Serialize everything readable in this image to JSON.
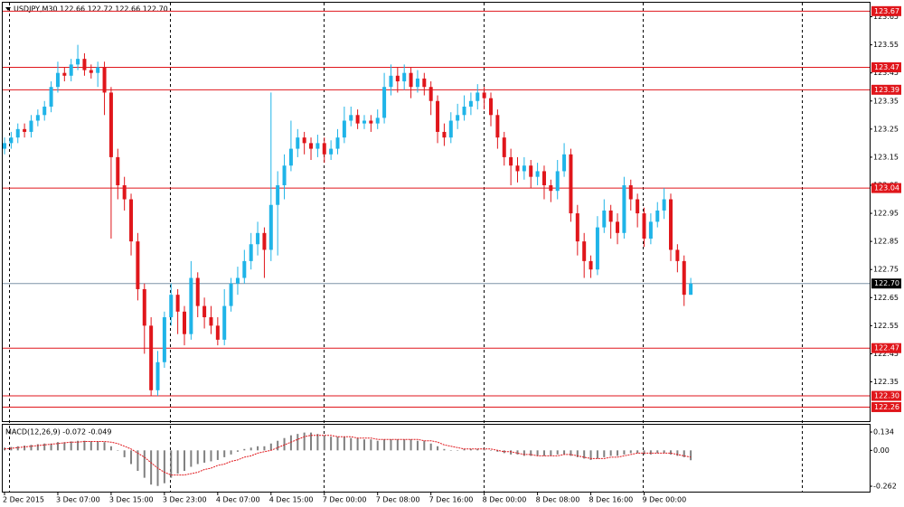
{
  "chart_data": {
    "type": "candlestick",
    "title": "USDJPY,M30  122.66 122.72 122.66 122.70",
    "bull_color": "#1fb4e8",
    "bear_color": "#e0161b",
    "categories": [
      "2 Dec 2015",
      null,
      null,
      null,
      null,
      null,
      null,
      null,
      "3 Dec 07:00",
      null,
      null,
      null,
      null,
      null,
      null,
      null,
      "3 Dec 15:00",
      null,
      null,
      null,
      null,
      null,
      null,
      null,
      "3 Dec 23:00",
      null,
      null,
      null,
      null,
      null,
      null,
      null,
      "4 Dec 07:00",
      null,
      null,
      null,
      null,
      null,
      null,
      null,
      "4 Dec 15:00",
      null,
      null,
      null,
      null,
      null,
      null,
      null,
      "7 Dec 00:00",
      null,
      null,
      null,
      null,
      null,
      null,
      null,
      "7 Dec 08:00",
      null,
      null,
      null,
      null,
      null,
      null,
      null,
      "7 Dec 16:00",
      null,
      null,
      null,
      null,
      null,
      null,
      null,
      "8 Dec 00:00",
      null,
      null,
      null,
      null,
      null,
      null,
      null,
      "8 Dec 08:00",
      null,
      null,
      null,
      null,
      null,
      null,
      null,
      "8 Dec 16:00",
      null,
      null,
      null,
      null,
      null,
      null,
      null,
      "9 Dec 00:00",
      null,
      null,
      null,
      null,
      null,
      null,
      null
    ],
    "open": [
      123.18,
      123.2,
      123.22,
      123.25,
      123.24,
      123.28,
      123.3,
      123.33,
      123.4,
      123.45,
      123.44,
      123.48,
      123.5,
      123.46,
      123.45,
      123.47,
      123.38,
      123.15,
      123.05,
      123.0,
      122.85,
      122.68,
      122.55,
      122.32,
      122.42,
      122.58,
      122.66,
      122.6,
      122.52,
      122.72,
      122.62,
      122.58,
      122.55,
      122.5,
      122.62,
      122.7,
      122.72,
      122.78,
      122.84,
      122.88,
      122.82,
      122.98,
      123.05,
      123.12,
      123.18,
      123.22,
      123.2,
      123.18,
      123.2,
      123.16,
      123.18,
      123.22,
      123.28,
      123.3,
      123.27,
      123.28,
      123.27,
      123.29,
      123.4,
      123.44,
      123.42,
      123.45,
      123.4,
      123.43,
      123.4,
      123.35,
      123.24,
      123.22,
      123.28,
      123.3,
      123.33,
      123.35,
      123.38,
      123.36,
      123.3,
      123.22,
      123.15,
      123.12,
      123.1,
      123.12,
      123.08,
      123.1,
      123.05,
      123.03,
      123.1,
      123.16,
      122.95,
      122.85,
      122.78,
      122.75,
      122.9,
      122.96,
      122.92,
      122.88,
      123.05,
      123.0,
      122.95,
      122.86,
      122.92,
      122.96,
      123.0,
      122.82,
      122.78,
      122.66
    ],
    "high": [
      123.22,
      123.24,
      123.27,
      123.27,
      123.3,
      123.32,
      123.35,
      123.42,
      123.49,
      123.47,
      123.5,
      123.55,
      123.52,
      123.48,
      123.49,
      123.49,
      123.4,
      123.18,
      123.08,
      123.02,
      122.88,
      122.7,
      122.58,
      122.46,
      122.6,
      122.7,
      122.68,
      122.62,
      122.78,
      122.74,
      122.65,
      122.62,
      122.58,
      122.68,
      122.72,
      122.76,
      122.82,
      122.88,
      122.92,
      122.9,
      123.38,
      123.1,
      123.16,
      123.28,
      123.25,
      123.24,
      123.22,
      123.23,
      123.22,
      123.21,
      123.25,
      123.33,
      123.33,
      123.32,
      123.3,
      123.3,
      123.32,
      123.45,
      123.48,
      123.47,
      123.48,
      123.47,
      123.46,
      123.45,
      123.42,
      123.37,
      123.27,
      123.31,
      123.34,
      123.37,
      123.38,
      123.41,
      123.4,
      123.38,
      123.32,
      123.24,
      123.18,
      123.15,
      123.15,
      123.14,
      123.13,
      123.12,
      123.07,
      123.14,
      123.2,
      123.18,
      122.98,
      122.88,
      122.8,
      122.94,
      123.0,
      122.98,
      122.95,
      123.08,
      123.07,
      123.02,
      122.97,
      122.95,
      122.99,
      123.04,
      123.02,
      122.84,
      122.8,
      122.72
    ],
    "low": [
      123.16,
      123.18,
      123.2,
      123.22,
      123.22,
      123.26,
      123.28,
      123.31,
      123.38,
      123.42,
      123.42,
      123.46,
      123.44,
      123.43,
      123.4,
      123.3,
      122.86,
      123.0,
      122.96,
      122.8,
      122.64,
      122.45,
      122.3,
      122.3,
      122.4,
      122.55,
      122.52,
      122.48,
      122.5,
      122.58,
      122.54,
      122.52,
      122.48,
      122.48,
      122.6,
      122.66,
      122.7,
      122.75,
      122.8,
      122.72,
      122.78,
      122.8,
      123.0,
      123.1,
      123.15,
      123.16,
      123.14,
      123.15,
      123.13,
      123.14,
      123.16,
      123.2,
      123.26,
      123.25,
      123.25,
      123.24,
      123.25,
      123.27,
      123.37,
      123.38,
      123.39,
      123.36,
      123.38,
      123.37,
      123.3,
      123.2,
      123.19,
      123.2,
      123.25,
      123.28,
      123.3,
      123.32,
      123.32,
      123.26,
      123.18,
      123.12,
      123.05,
      123.06,
      123.07,
      123.04,
      123.05,
      123.0,
      122.99,
      123.0,
      123.08,
      122.92,
      122.8,
      122.72,
      122.72,
      122.73,
      122.88,
      122.86,
      122.84,
      122.86,
      122.96,
      122.9,
      122.83,
      122.84,
      122.9,
      122.93,
      122.78,
      122.74,
      122.62,
      122.66
    ],
    "close": [
      123.2,
      123.22,
      123.25,
      123.24,
      123.28,
      123.3,
      123.33,
      123.4,
      123.45,
      123.44,
      123.48,
      123.5,
      123.46,
      123.45,
      123.47,
      123.38,
      123.15,
      123.05,
      123.0,
      122.85,
      122.68,
      122.55,
      122.32,
      122.42,
      122.58,
      122.66,
      122.6,
      122.52,
      122.72,
      122.62,
      122.58,
      122.55,
      122.5,
      122.62,
      122.7,
      122.72,
      122.78,
      122.84,
      122.88,
      122.82,
      122.98,
      123.05,
      123.12,
      123.18,
      123.22,
      123.2,
      123.18,
      123.2,
      123.16,
      123.18,
      123.22,
      123.28,
      123.3,
      123.27,
      123.28,
      123.27,
      123.29,
      123.4,
      123.44,
      123.42,
      123.45,
      123.4,
      123.43,
      123.4,
      123.35,
      123.24,
      123.22,
      123.28,
      123.3,
      123.33,
      123.35,
      123.38,
      123.36,
      123.3,
      123.22,
      123.15,
      123.12,
      123.1,
      123.12,
      123.08,
      123.1,
      123.05,
      123.03,
      123.1,
      123.16,
      122.95,
      122.85,
      122.78,
      122.75,
      122.9,
      122.96,
      122.92,
      122.88,
      123.05,
      123.0,
      122.95,
      122.86,
      122.92,
      122.96,
      123.0,
      122.82,
      122.78,
      122.66,
      122.7
    ],
    "ylim": [
      122.21,
      123.7
    ],
    "yticks": [
      123.65,
      123.55,
      123.45,
      123.35,
      123.25,
      123.15,
      123.05,
      122.95,
      122.85,
      122.75,
      122.65,
      122.55,
      122.45,
      122.35
    ],
    "level_color": "#e0161b",
    "levels": [
      123.67,
      123.47,
      123.39,
      123.04,
      122.47,
      {
        "value": 122.3,
        "label": "122.30"
      },
      122.26
    ],
    "current_price": {
      "value": 122.7,
      "label": "122.70"
    },
    "macd": {
      "title": "MACD(12,26,9) -0.072 -0.049",
      "histogram_color": "#808080",
      "signal_color": "#e0161b",
      "histogram": [
        0.02,
        0.025,
        0.03,
        0.035,
        0.04,
        0.045,
        0.05,
        0.05,
        0.06,
        0.06,
        0.065,
        0.07,
        0.07,
        0.065,
        0.065,
        0.06,
        0.03,
        0,
        -0.05,
        -0.1,
        -0.15,
        -0.2,
        -0.25,
        -0.26,
        -0.24,
        -0.2,
        -0.17,
        -0.15,
        -0.12,
        -0.1,
        -0.09,
        -0.08,
        -0.07,
        -0.05,
        -0.03,
        -0.01,
        0.01,
        0.02,
        0.03,
        0.03,
        0.05,
        0.07,
        0.09,
        0.11,
        0.12,
        0.13,
        0.13,
        0.12,
        0.11,
        0.1,
        0.1,
        0.1,
        0.09,
        0.09,
        0.08,
        0.08,
        0.07,
        0.08,
        0.08,
        0.08,
        0.08,
        0.08,
        0.07,
        0.07,
        0.05,
        0.03,
        0.01,
        0,
        0,
        0.01,
        0.01,
        0.01,
        0.01,
        0,
        -0.01,
        -0.02,
        -0.03,
        -0.03,
        -0.04,
        -0.04,
        -0.04,
        -0.04,
        -0.04,
        -0.03,
        -0.03,
        -0.04,
        -0.05,
        -0.06,
        -0.07,
        -0.06,
        -0.05,
        -0.04,
        -0.04,
        -0.03,
        -0.02,
        -0.02,
        -0.03,
        -0.03,
        -0.02,
        -0.02,
        -0.03,
        -0.04,
        -0.05,
        -0.072
      ],
      "signal": [
        0.01,
        0.015,
        0.02,
        0.025,
        0.03,
        0.035,
        0.04,
        0.045,
        0.05,
        0.055,
        0.06,
        0.06,
        0.065,
        0.065,
        0.065,
        0.065,
        0.06,
        0.05,
        0.03,
        0.01,
        -0.02,
        -0.05,
        -0.09,
        -0.13,
        -0.16,
        -0.18,
        -0.18,
        -0.18,
        -0.17,
        -0.16,
        -0.14,
        -0.13,
        -0.11,
        -0.1,
        -0.08,
        -0.07,
        -0.05,
        -0.04,
        -0.02,
        -0.01,
        0,
        0.02,
        0.04,
        0.06,
        0.08,
        0.1,
        0.11,
        0.11,
        0.11,
        0.11,
        0.1,
        0.1,
        0.1,
        0.09,
        0.09,
        0.09,
        0.08,
        0.08,
        0.08,
        0.08,
        0.08,
        0.08,
        0.08,
        0.07,
        0.07,
        0.06,
        0.04,
        0.03,
        0.02,
        0.01,
        0.01,
        0.01,
        0.01,
        0.01,
        0,
        -0.01,
        -0.01,
        -0.02,
        -0.03,
        -0.03,
        -0.04,
        -0.04,
        -0.04,
        -0.04,
        -0.03,
        -0.03,
        -0.04,
        -0.05,
        -0.06,
        -0.06,
        -0.06,
        -0.05,
        -0.05,
        -0.04,
        -0.03,
        -0.02,
        -0.02,
        -0.02,
        -0.02,
        -0.02,
        -0.02,
        -0.03,
        -0.04,
        -0.049
      ],
      "y2lim": [
        -0.308,
        0.187
      ],
      "y2ticks": [
        0.134,
        {
          "value": 0,
          "label": "0.00"
        },
        -0.262
      ]
    }
  }
}
